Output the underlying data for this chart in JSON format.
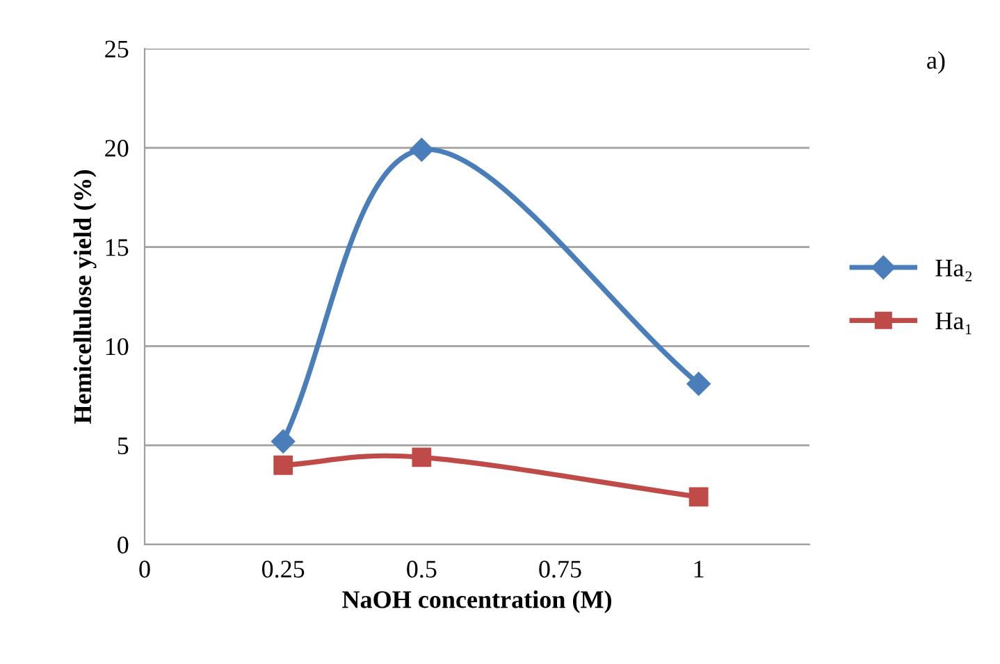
{
  "chart_data": {
    "type": "line",
    "xlabel": "NaOH concentration (M)",
    "ylabel": "Hemicellulose yield (%)",
    "annotations": [
      "a)"
    ],
    "x": [
      0.25,
      0.5,
      1
    ],
    "series": [
      {
        "name": "Ha₂",
        "color": "#4a7ebb",
        "marker": "diamond",
        "values": [
          5.2,
          19.9,
          8.1
        ]
      },
      {
        "name": "Ha₁",
        "color": "#be4b48",
        "marker": "square",
        "values": [
          4.0,
          4.4,
          2.4
        ]
      }
    ],
    "xlim": [
      0,
      1.2
    ],
    "xticks": [
      0,
      0.25,
      0.5,
      0.75,
      1
    ],
    "ylim": [
      0,
      25
    ],
    "yticks": [
      0,
      5,
      10,
      15,
      20,
      25
    ],
    "grid": "y",
    "legend": "right",
    "line_style": "solid"
  }
}
